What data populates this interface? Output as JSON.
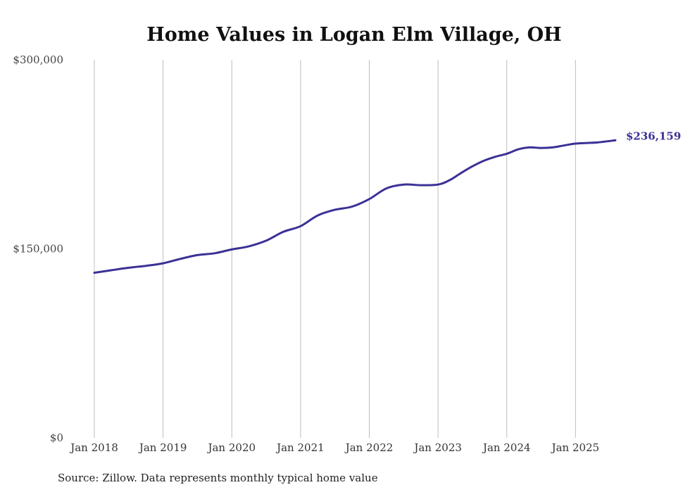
{
  "chart_data": {
    "type": "line",
    "title": "Home Values in Logan Elm Village, OH",
    "source": "Source: Zillow. Data represents monthly typical home value",
    "ylim": [
      0,
      300000
    ],
    "yticks": [
      {
        "value": 0,
        "label": "$0"
      },
      {
        "value": 150000,
        "label": "$150,000"
      },
      {
        "value": 300000,
        "label": "$300,000"
      }
    ],
    "xticks": [
      {
        "value": 2018.0,
        "label": "Jan 2018"
      },
      {
        "value": 2019.0,
        "label": "Jan 2019"
      },
      {
        "value": 2020.0,
        "label": "Jan 2020"
      },
      {
        "value": 2021.0,
        "label": "Jan 2021"
      },
      {
        "value": 2022.0,
        "label": "Jan 2022"
      },
      {
        "value": 2023.0,
        "label": "Jan 2023"
      },
      {
        "value": 2024.0,
        "label": "Jan 2024"
      },
      {
        "value": 2025.0,
        "label": "Jan 2025"
      }
    ],
    "xlim": [
      2018.0,
      2025.58
    ],
    "grid": "vertical",
    "line_color": "#3b3196",
    "end_label": "$236,159",
    "series": [
      {
        "x": [
          2018.0,
          2018.25,
          2018.5,
          2018.75,
          2019.0,
          2019.25,
          2019.5,
          2019.75,
          2020.0,
          2020.25,
          2020.5,
          2020.75,
          2021.0,
          2021.25,
          2021.5,
          2021.75,
          2022.0,
          2022.25,
          2022.5,
          2022.75,
          2023.0,
          2023.17,
          2023.33,
          2023.5,
          2023.67,
          2023.83,
          2024.0,
          2024.17,
          2024.33,
          2024.5,
          2024.67,
          2024.83,
          2025.0,
          2025.17,
          2025.33,
          2025.58
        ],
        "values": [
          131000,
          133000,
          135000,
          136500,
          138500,
          142000,
          145000,
          146500,
          149500,
          152000,
          156500,
          163500,
          168000,
          176500,
          181000,
          183500,
          189500,
          198000,
          201000,
          200500,
          201000,
          204500,
          210000,
          215500,
          220000,
          223000,
          225500,
          229000,
          230500,
          230000,
          230500,
          232000,
          233500,
          234000,
          234500,
          236159
        ]
      }
    ]
  }
}
